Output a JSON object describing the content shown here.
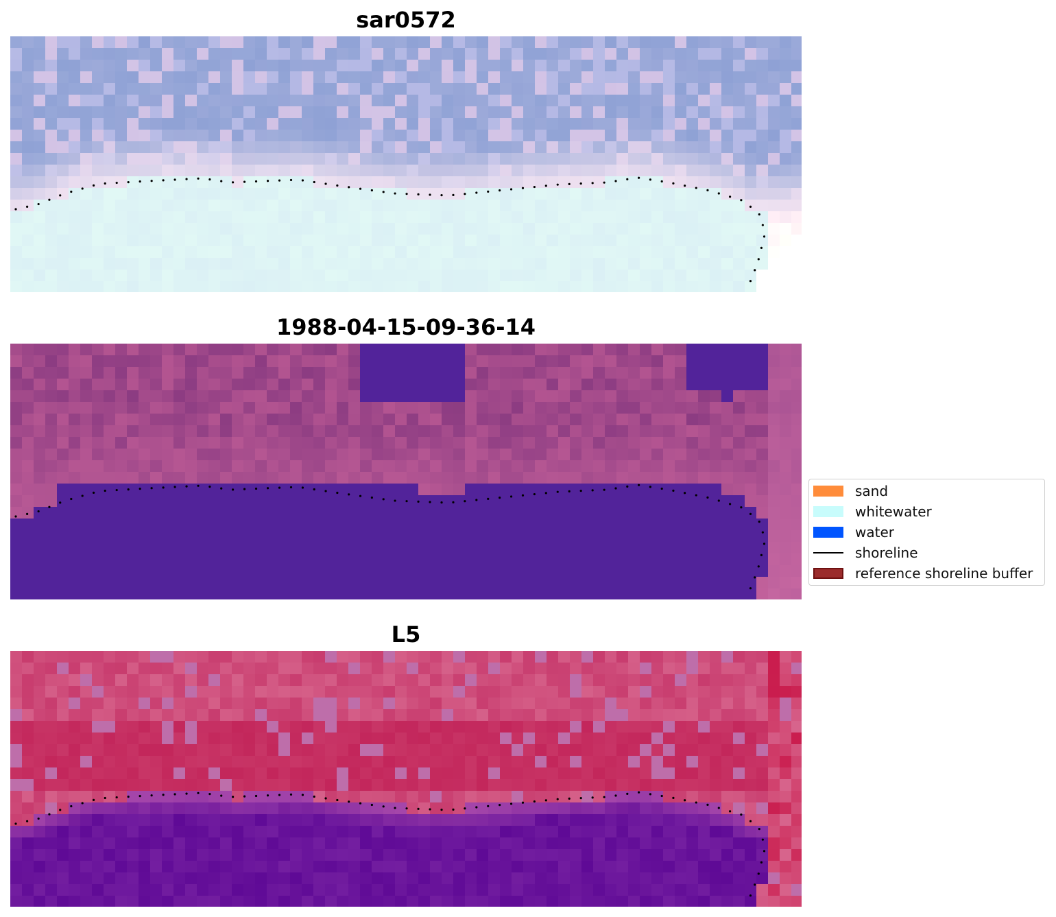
{
  "panels": [
    {
      "title": "sar0572",
      "style": "sar"
    },
    {
      "title": "1988-04-15-09-36-14",
      "style": "classified"
    },
    {
      "title": "L5",
      "style": "l5"
    }
  ],
  "legend": {
    "items": [
      {
        "label": "sand",
        "color": "#ff8c3a"
      },
      {
        "label": "whitewater",
        "color": "#c8fcfc"
      },
      {
        "label": "water",
        "color": "#0055ff"
      },
      {
        "label": "shoreline",
        "color": "#000000",
        "kind": "line"
      },
      {
        "label": "reference shoreline buffer",
        "color": "#9b2b2b",
        "edge": "#6e1010"
      }
    ]
  },
  "colors": {
    "classified_water": "#52239a",
    "shoreline_dots": "#000000"
  }
}
